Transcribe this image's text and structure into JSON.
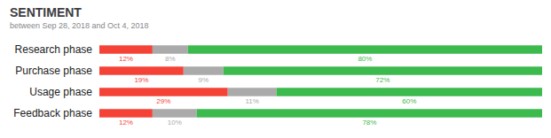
{
  "chart_data": {
    "type": "bar",
    "title": "SENTIMENT",
    "subtitle": "between Sep 28, 2018 and Oct 4, 2018",
    "orientation": "horizontal",
    "stacked": true,
    "data_labels": true,
    "grid": false,
    "tick_labels": "y",
    "categories": [
      "Research phase",
      "Purchase phase",
      "Usage phase",
      "Feedback phase"
    ],
    "xlim": [
      0,
      100
    ],
    "series": [
      {
        "color": "#f44336",
        "values": [
          12,
          19,
          29,
          12
        ],
        "value_labels": [
          "12%",
          "19%",
          "29%",
          "12%"
        ]
      },
      {
        "color": "#aaaaaa",
        "values": [
          8,
          9,
          11,
          10
        ],
        "value_labels": [
          "8%",
          "9%",
          "11%",
          "10%"
        ]
      },
      {
        "color": "#3dba4e",
        "values": [
          80,
          72,
          60,
          78
        ],
        "value_labels": [
          "80%",
          "72%",
          "60%",
          "78%"
        ]
      }
    ]
  }
}
